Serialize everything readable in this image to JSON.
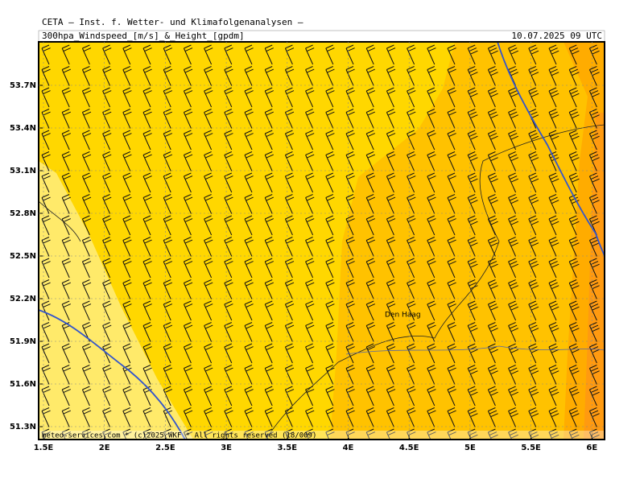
{
  "header": {
    "title": "CETA — Inst. f. Wetter- und Klimafolgenanalysen —",
    "subtitle": "300hpa_Windspeed_[m/s]_&_Height_[gpdm]",
    "timestamp": "10.07.2025 09 UTC"
  },
  "map": {
    "x_labels": [
      "1.5E",
      "2E",
      "2.5E",
      "3E",
      "3.5E",
      "4E",
      "4.5E",
      "5E",
      "5.5E",
      "6E"
    ],
    "y_labels": [
      "53.7N",
      "53.4N",
      "53.1N",
      "52.8N",
      "52.5N",
      "52.2N",
      "51.9N",
      "51.6N",
      "51.3N"
    ],
    "place_label": "Den Haag",
    "footer": "meteo-services.com * (c)2025 WKF * All rights reserved (18/009)"
  }
}
